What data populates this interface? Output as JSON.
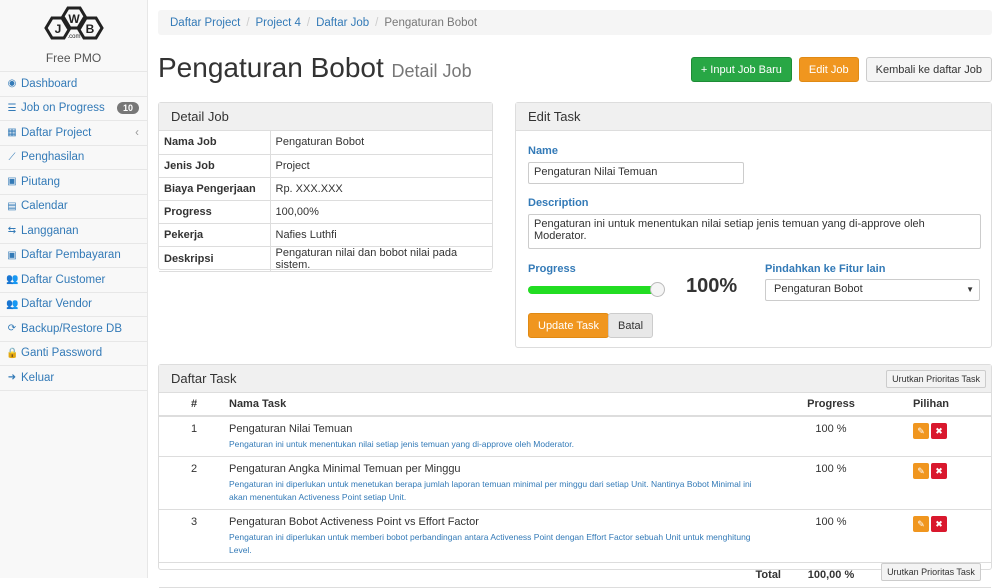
{
  "sidebar": {
    "brand": "Free PMO",
    "logo_text": "JWB.com",
    "items": [
      {
        "label": "Dashboard",
        "icon": "dashboard-icon",
        "glyph": "◉"
      },
      {
        "label": "Job on Progress",
        "icon": "tasks-icon",
        "glyph": "☰",
        "badge": "10"
      },
      {
        "label": "Daftar Project",
        "icon": "table-icon",
        "glyph": "▦",
        "caret": "‹"
      },
      {
        "label": "Penghasilan",
        "icon": "line-chart-icon",
        "glyph": "⟋"
      },
      {
        "label": "Piutang",
        "icon": "money-icon",
        "glyph": "▣"
      },
      {
        "label": "Calendar",
        "icon": "calendar-icon",
        "glyph": "▤"
      },
      {
        "label": "Langganan",
        "icon": "retweet-icon",
        "glyph": "⇆"
      },
      {
        "label": "Daftar Pembayaran",
        "icon": "money-icon",
        "glyph": "▣"
      },
      {
        "label": "Daftar Customer",
        "icon": "users-icon",
        "glyph": "👥"
      },
      {
        "label": "Daftar Vendor",
        "icon": "users-icon",
        "glyph": "👥"
      },
      {
        "label": "Backup/Restore DB",
        "icon": "refresh-icon",
        "glyph": "⟳"
      },
      {
        "label": "Ganti Password",
        "icon": "lock-icon",
        "glyph": "🔒"
      },
      {
        "label": "Keluar",
        "icon": "sign-out-icon",
        "glyph": "➜"
      }
    ]
  },
  "breadcrumb": [
    "Daftar Project",
    "Project 4",
    "Daftar Job",
    "Pengaturan Bobot"
  ],
  "header": {
    "title": "Pengaturan Bobot",
    "subtitle": "Detail Job",
    "btn_new": "+ Input Job Baru",
    "btn_edit": "Edit Job",
    "btn_back": "Kembali ke daftar Job"
  },
  "detail": {
    "title": "Detail Job",
    "rows": [
      {
        "k": "Nama Job",
        "v": "Pengaturan Bobot"
      },
      {
        "k": "Jenis Job",
        "v": "Project"
      },
      {
        "k": "Biaya Pengerjaan",
        "v": "Rp. XXX.XXX"
      },
      {
        "k": "Progress",
        "v": "100,00%"
      },
      {
        "k": "Pekerja",
        "v": "Nafies Luthfi"
      },
      {
        "k": "Deskripsi",
        "v": "Pengaturan nilai dan bobot nilai pada sistem."
      }
    ]
  },
  "edit": {
    "title": "Edit Task",
    "name_label": "Name",
    "name_value": "Pengaturan Nilai Temuan",
    "desc_label": "Description",
    "desc_value": "Pengaturan ini untuk menentukan nilai setiap jenis temuan yang di-approve oleh Moderator.",
    "progress_label": "Progress",
    "progress_value": 100,
    "progress_text": "100%",
    "move_label": "Pindahkan ke Fitur lain",
    "move_value": "Pengaturan Bobot",
    "update": "Update Task",
    "cancel": "Batal",
    "accent": "#22dd22"
  },
  "tasks": {
    "title": "Daftar Task",
    "sort_btn": "Urutkan Prioritas Task",
    "cols": [
      "#",
      "Nama Task",
      "Progress",
      "Pilihan"
    ],
    "rows": [
      {
        "no": "1",
        "name": "Pengaturan Nilai Temuan",
        "desc": "Pengaturan ini untuk menentukan nilai setiap jenis temuan yang di-approve oleh Moderator.",
        "progress": "100 %"
      },
      {
        "no": "2",
        "name": "Pengaturan Angka Minimal Temuan per Minggu",
        "desc": "Pengaturan ini diperlukan untuk menetukan berapa jumlah laporan temuan minimal per minggu dari setiap Unit. Nantinya Bobot Minimal ini akan menentukan Activeness Point setiap Unit.",
        "progress": "100 %"
      },
      {
        "no": "3",
        "name": "Pengaturan Bobot Activeness Point vs Effort Factor",
        "desc": "Pengaturan ini diperlukan untuk memberi bobot perbandingan antara Activeness Point dengan Effort Factor sebuah Unit untuk menghitung Level.",
        "progress": "100 %"
      }
    ],
    "total_label": "Total",
    "total_value": "100,00 %"
  }
}
